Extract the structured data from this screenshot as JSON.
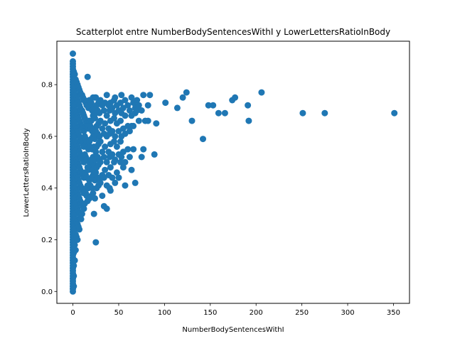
{
  "chart_data": {
    "type": "scatter",
    "title": "Scatterplot entre NumberBodySentencesWithI y LowerLettersRatioInBody",
    "xlabel": "NumberBodySentencesWithI",
    "ylabel": "LowerLettersRatioInBody",
    "xlim": [
      -17.5,
      367.5
    ],
    "ylim": [
      -0.046,
      0.968
    ],
    "xticks": [
      0,
      50,
      100,
      150,
      200,
      250,
      300,
      350
    ],
    "yticks": [
      0.0,
      0.2,
      0.4,
      0.6,
      0.8
    ],
    "grid": false,
    "legend": "none",
    "point_color": "#1f77b4",
    "points": [
      [
        0,
        0.92
      ],
      [
        0,
        0.89
      ],
      [
        0,
        0.88
      ],
      [
        0,
        0.87
      ],
      [
        0,
        0.86
      ],
      [
        0,
        0.85
      ],
      [
        0,
        0.84
      ],
      [
        0,
        0.83
      ],
      [
        0,
        0.82
      ],
      [
        0,
        0.81
      ],
      [
        0,
        0.8
      ],
      [
        0,
        0.79
      ],
      [
        0,
        0.78
      ],
      [
        0,
        0.77
      ],
      [
        0,
        0.76
      ],
      [
        0,
        0.75
      ],
      [
        0,
        0.74
      ],
      [
        0,
        0.73
      ],
      [
        0,
        0.72
      ],
      [
        0,
        0.71
      ],
      [
        0,
        0.7
      ],
      [
        0,
        0.69
      ],
      [
        0,
        0.68
      ],
      [
        0,
        0.67
      ],
      [
        0,
        0.66
      ],
      [
        0,
        0.65
      ],
      [
        0,
        0.64
      ],
      [
        0,
        0.63
      ],
      [
        0,
        0.62
      ],
      [
        0,
        0.61
      ],
      [
        0,
        0.6
      ],
      [
        0,
        0.59
      ],
      [
        0,
        0.58
      ],
      [
        0,
        0.57
      ],
      [
        0,
        0.56
      ],
      [
        0,
        0.55
      ],
      [
        0,
        0.54
      ],
      [
        0,
        0.53
      ],
      [
        0,
        0.52
      ],
      [
        0,
        0.51
      ],
      [
        0,
        0.5
      ],
      [
        0,
        0.49
      ],
      [
        0,
        0.48
      ],
      [
        0,
        0.47
      ],
      [
        0,
        0.46
      ],
      [
        0,
        0.45
      ],
      [
        0,
        0.44
      ],
      [
        0,
        0.43
      ],
      [
        0,
        0.42
      ],
      [
        0,
        0.41
      ],
      [
        0,
        0.4
      ],
      [
        0,
        0.39
      ],
      [
        0,
        0.38
      ],
      [
        0,
        0.37
      ],
      [
        0,
        0.36
      ],
      [
        0,
        0.35
      ],
      [
        0,
        0.34
      ],
      [
        0,
        0.33
      ],
      [
        0,
        0.32
      ],
      [
        0,
        0.31
      ],
      [
        0,
        0.3
      ],
      [
        0,
        0.29
      ],
      [
        0,
        0.28
      ],
      [
        0,
        0.27
      ],
      [
        0,
        0.26
      ],
      [
        0,
        0.25
      ],
      [
        0,
        0.24
      ],
      [
        0,
        0.23
      ],
      [
        0,
        0.22
      ],
      [
        0,
        0.21
      ],
      [
        0,
        0.2
      ],
      [
        0,
        0.19
      ],
      [
        0,
        0.18
      ],
      [
        0,
        0.17
      ],
      [
        0,
        0.16
      ],
      [
        0,
        0.15
      ],
      [
        0,
        0.14
      ],
      [
        0,
        0.13
      ],
      [
        0,
        0.12
      ],
      [
        0,
        0.11
      ],
      [
        0,
        0.1
      ],
      [
        0,
        0.09
      ],
      [
        0,
        0.08
      ],
      [
        0,
        0.07
      ],
      [
        0,
        0.06
      ],
      [
        0,
        0.05
      ],
      [
        0,
        0.04
      ],
      [
        0,
        0.03
      ],
      [
        0,
        0.02
      ],
      [
        0,
        0.01
      ],
      [
        0,
        0.0
      ],
      [
        1,
        0.85
      ],
      [
        1,
        0.8
      ],
      [
        1,
        0.75
      ],
      [
        1,
        0.7
      ],
      [
        1,
        0.65
      ],
      [
        1,
        0.6
      ],
      [
        1,
        0.55
      ],
      [
        1,
        0.5
      ],
      [
        1,
        0.45
      ],
      [
        1,
        0.4
      ],
      [
        1,
        0.35
      ],
      [
        1,
        0.3
      ],
      [
        1,
        0.25
      ],
      [
        1,
        0.2
      ],
      [
        1,
        0.15
      ],
      [
        1,
        0.1
      ],
      [
        1,
        0.06
      ],
      [
        1,
        0.02
      ],
      [
        2,
        0.84
      ],
      [
        2,
        0.78
      ],
      [
        2,
        0.72
      ],
      [
        2,
        0.66
      ],
      [
        2,
        0.6
      ],
      [
        2,
        0.54
      ],
      [
        2,
        0.48
      ],
      [
        2,
        0.42
      ],
      [
        2,
        0.36
      ],
      [
        2,
        0.3
      ],
      [
        2,
        0.24
      ],
      [
        2,
        0.18
      ],
      [
        2,
        0.12
      ],
      [
        3,
        0.82
      ],
      [
        3,
        0.76
      ],
      [
        3,
        0.7
      ],
      [
        3,
        0.64
      ],
      [
        3,
        0.58
      ],
      [
        3,
        0.52
      ],
      [
        3,
        0.46
      ],
      [
        3,
        0.4
      ],
      [
        3,
        0.34
      ],
      [
        3,
        0.28
      ],
      [
        3,
        0.22
      ],
      [
        3,
        0.16
      ],
      [
        4,
        0.81
      ],
      [
        4,
        0.75
      ],
      [
        4,
        0.69
      ],
      [
        4,
        0.63
      ],
      [
        4,
        0.57
      ],
      [
        4,
        0.51
      ],
      [
        4,
        0.45
      ],
      [
        4,
        0.39
      ],
      [
        4,
        0.33
      ],
      [
        4,
        0.27
      ],
      [
        4,
        0.21
      ],
      [
        5,
        0.8
      ],
      [
        5,
        0.74
      ],
      [
        5,
        0.68
      ],
      [
        5,
        0.62
      ],
      [
        5,
        0.56
      ],
      [
        5,
        0.5
      ],
      [
        5,
        0.44
      ],
      [
        5,
        0.38
      ],
      [
        5,
        0.32
      ],
      [
        5,
        0.26
      ],
      [
        5,
        0.2
      ],
      [
        6,
        0.79
      ],
      [
        6,
        0.73
      ],
      [
        6,
        0.67
      ],
      [
        6,
        0.61
      ],
      [
        6,
        0.55
      ],
      [
        6,
        0.49
      ],
      [
        6,
        0.43
      ],
      [
        6,
        0.37
      ],
      [
        6,
        0.31
      ],
      [
        6,
        0.25
      ],
      [
        7,
        0.78
      ],
      [
        7,
        0.72
      ],
      [
        7,
        0.66
      ],
      [
        7,
        0.6
      ],
      [
        7,
        0.54
      ],
      [
        7,
        0.48
      ],
      [
        7,
        0.42
      ],
      [
        7,
        0.36
      ],
      [
        7,
        0.3
      ],
      [
        7,
        0.24
      ],
      [
        8,
        0.77
      ],
      [
        8,
        0.71
      ],
      [
        8,
        0.65
      ],
      [
        8,
        0.59
      ],
      [
        8,
        0.53
      ],
      [
        8,
        0.47
      ],
      [
        8,
        0.41
      ],
      [
        8,
        0.35
      ],
      [
        8,
        0.29
      ],
      [
        9,
        0.76
      ],
      [
        9,
        0.7
      ],
      [
        9,
        0.64
      ],
      [
        9,
        0.58
      ],
      [
        9,
        0.52
      ],
      [
        9,
        0.46
      ],
      [
        9,
        0.4
      ],
      [
        9,
        0.34
      ],
      [
        9,
        0.28
      ],
      [
        10,
        0.76
      ],
      [
        10,
        0.7
      ],
      [
        10,
        0.64
      ],
      [
        10,
        0.58
      ],
      [
        10,
        0.52
      ],
      [
        10,
        0.46
      ],
      [
        10,
        0.4
      ],
      [
        10,
        0.34
      ],
      [
        10,
        0.3
      ],
      [
        11,
        0.75
      ],
      [
        11,
        0.69
      ],
      [
        11,
        0.63
      ],
      [
        11,
        0.57
      ],
      [
        11,
        0.51
      ],
      [
        11,
        0.45
      ],
      [
        11,
        0.39
      ],
      [
        11,
        0.33
      ],
      [
        12,
        0.74
      ],
      [
        12,
        0.68
      ],
      [
        12,
        0.62
      ],
      [
        12,
        0.56
      ],
      [
        12,
        0.5
      ],
      [
        12,
        0.44
      ],
      [
        12,
        0.38
      ],
      [
        12,
        0.32
      ],
      [
        13,
        0.74
      ],
      [
        13,
        0.67
      ],
      [
        13,
        0.6
      ],
      [
        13,
        0.53
      ],
      [
        13,
        0.46
      ],
      [
        13,
        0.39
      ],
      [
        13,
        0.34
      ],
      [
        14,
        0.73
      ],
      [
        14,
        0.66
      ],
      [
        14,
        0.59
      ],
      [
        14,
        0.52
      ],
      [
        14,
        0.45
      ],
      [
        14,
        0.38
      ],
      [
        15,
        0.72
      ],
      [
        15,
        0.65
      ],
      [
        15,
        0.58
      ],
      [
        15,
        0.51
      ],
      [
        15,
        0.44
      ],
      [
        15,
        0.37
      ],
      [
        16,
        0.83
      ],
      [
        16,
        0.72
      ],
      [
        16,
        0.64
      ],
      [
        16,
        0.56
      ],
      [
        16,
        0.48
      ],
      [
        16,
        0.41
      ],
      [
        16,
        0.35
      ],
      [
        17,
        0.71
      ],
      [
        17,
        0.63
      ],
      [
        17,
        0.55
      ],
      [
        17,
        0.47
      ],
      [
        17,
        0.4
      ],
      [
        18,
        0.74
      ],
      [
        18,
        0.66
      ],
      [
        18,
        0.58
      ],
      [
        18,
        0.5
      ],
      [
        18,
        0.43
      ],
      [
        18,
        0.36
      ],
      [
        19,
        0.72
      ],
      [
        19,
        0.64
      ],
      [
        19,
        0.56
      ],
      [
        19,
        0.48
      ],
      [
        19,
        0.41
      ],
      [
        20,
        0.73
      ],
      [
        20,
        0.66
      ],
      [
        20,
        0.59
      ],
      [
        20,
        0.51
      ],
      [
        20,
        0.44
      ],
      [
        20,
        0.37
      ],
      [
        21,
        0.7
      ],
      [
        21,
        0.62
      ],
      [
        21,
        0.55
      ],
      [
        21,
        0.47
      ],
      [
        21,
        0.4
      ],
      [
        22,
        0.75
      ],
      [
        22,
        0.68
      ],
      [
        22,
        0.6
      ],
      [
        22,
        0.52
      ],
      [
        22,
        0.45
      ],
      [
        22,
        0.38
      ],
      [
        23,
        0.71
      ],
      [
        23,
        0.63
      ],
      [
        23,
        0.56
      ],
      [
        23,
        0.49
      ],
      [
        23,
        0.3
      ],
      [
        24,
        0.75
      ],
      [
        24,
        0.67
      ],
      [
        24,
        0.59
      ],
      [
        24,
        0.51
      ],
      [
        24,
        0.43
      ],
      [
        24,
        0.36
      ],
      [
        25,
        0.75
      ],
      [
        25,
        0.69
      ],
      [
        25,
        0.62
      ],
      [
        25,
        0.54
      ],
      [
        25,
        0.46
      ],
      [
        25,
        0.19
      ],
      [
        26,
        0.72
      ],
      [
        26,
        0.64
      ],
      [
        26,
        0.56
      ],
      [
        26,
        0.48
      ],
      [
        26,
        0.4
      ],
      [
        27,
        0.7
      ],
      [
        27,
        0.61
      ],
      [
        27,
        0.52
      ],
      [
        27,
        0.44
      ],
      [
        28,
        0.73
      ],
      [
        28,
        0.65
      ],
      [
        28,
        0.57
      ],
      [
        28,
        0.49
      ],
      [
        28,
        0.41
      ],
      [
        29,
        0.69
      ],
      [
        29,
        0.6
      ],
      [
        29,
        0.51
      ],
      [
        29,
        0.43
      ],
      [
        30,
        0.74
      ],
      [
        30,
        0.66
      ],
      [
        30,
        0.58
      ],
      [
        30,
        0.5
      ],
      [
        30,
        0.42
      ],
      [
        32,
        0.72
      ],
      [
        32,
        0.63
      ],
      [
        32,
        0.54
      ],
      [
        32,
        0.45
      ],
      [
        32,
        0.37
      ],
      [
        34,
        0.7
      ],
      [
        34,
        0.61
      ],
      [
        34,
        0.52
      ],
      [
        34,
        0.44
      ],
      [
        34,
        0.33
      ],
      [
        35,
        0.73
      ],
      [
        35,
        0.65
      ],
      [
        35,
        0.56
      ],
      [
        35,
        0.47
      ],
      [
        37,
        0.76
      ],
      [
        37,
        0.68
      ],
      [
        37,
        0.6
      ],
      [
        37,
        0.5
      ],
      [
        37,
        0.41
      ],
      [
        37,
        0.32
      ],
      [
        39,
        0.72
      ],
      [
        39,
        0.63
      ],
      [
        39,
        0.54
      ],
      [
        39,
        0.45
      ],
      [
        40,
        0.7
      ],
      [
        40,
        0.61
      ],
      [
        40,
        0.52
      ],
      [
        40,
        0.4
      ],
      [
        41,
        0.73
      ],
      [
        41,
        0.66
      ],
      [
        41,
        0.57
      ],
      [
        41,
        0.48
      ],
      [
        41,
        0.39
      ],
      [
        43,
        0.71
      ],
      [
        43,
        0.62
      ],
      [
        43,
        0.53
      ],
      [
        43,
        0.44
      ],
      [
        45,
        0.74
      ],
      [
        45,
        0.67
      ],
      [
        45,
        0.58
      ],
      [
        45,
        0.5
      ],
      [
        46,
        0.75
      ],
      [
        46,
        0.69
      ],
      [
        46,
        0.6
      ],
      [
        46,
        0.51
      ],
      [
        46,
        0.42
      ],
      [
        48,
        0.72
      ],
      [
        48,
        0.65
      ],
      [
        48,
        0.56
      ],
      [
        48,
        0.46
      ],
      [
        50,
        0.7
      ],
      [
        50,
        0.62
      ],
      [
        50,
        0.53
      ],
      [
        50,
        0.44
      ],
      [
        52,
        0.73
      ],
      [
        52,
        0.66
      ],
      [
        52,
        0.58
      ],
      [
        52,
        0.5
      ],
      [
        53,
        0.76
      ],
      [
        53,
        0.69
      ],
      [
        53,
        0.6
      ],
      [
        53,
        0.52
      ],
      [
        55,
        0.71
      ],
      [
        55,
        0.63
      ],
      [
        55,
        0.54
      ],
      [
        55,
        0.48
      ],
      [
        57,
        0.74
      ],
      [
        57,
        0.68
      ],
      [
        57,
        0.61
      ],
      [
        57,
        0.5
      ],
      [
        57,
        0.41
      ],
      [
        60,
        0.72
      ],
      [
        60,
        0.64
      ],
      [
        60,
        0.55
      ],
      [
        62,
        0.7
      ],
      [
        62,
        0.62
      ],
      [
        62,
        0.52
      ],
      [
        64,
        0.75
      ],
      [
        64,
        0.68
      ],
      [
        64,
        0.64
      ],
      [
        64,
        0.47
      ],
      [
        66,
        0.73
      ],
      [
        66,
        0.64
      ],
      [
        66,
        0.55
      ],
      [
        68,
        0.71
      ],
      [
        68,
        0.69
      ],
      [
        68,
        0.42
      ],
      [
        70,
        0.74
      ],
      [
        70,
        0.7
      ],
      [
        72,
        0.72
      ],
      [
        72,
        0.66
      ],
      [
        75,
        0.7
      ],
      [
        75,
        0.52
      ],
      [
        77,
        0.76
      ],
      [
        77,
        0.55
      ],
      [
        79,
        0.66
      ],
      [
        82,
        0.72
      ],
      [
        82,
        0.66
      ],
      [
        84,
        0.76
      ],
      [
        89,
        0.53
      ],
      [
        91,
        0.65
      ],
      [
        101,
        0.73
      ],
      [
        114,
        0.71
      ],
      [
        120,
        0.75
      ],
      [
        124,
        0.77
      ],
      [
        130,
        0.66
      ],
      [
        142,
        0.59
      ],
      [
        148,
        0.72
      ],
      [
        153,
        0.72
      ],
      [
        159,
        0.69
      ],
      [
        166,
        0.69
      ],
      [
        174,
        0.74
      ],
      [
        177,
        0.75
      ],
      [
        191,
        0.72
      ],
      [
        192,
        0.66
      ],
      [
        206,
        0.77
      ],
      [
        251,
        0.69
      ],
      [
        275,
        0.69
      ],
      [
        351,
        0.69
      ]
    ]
  }
}
